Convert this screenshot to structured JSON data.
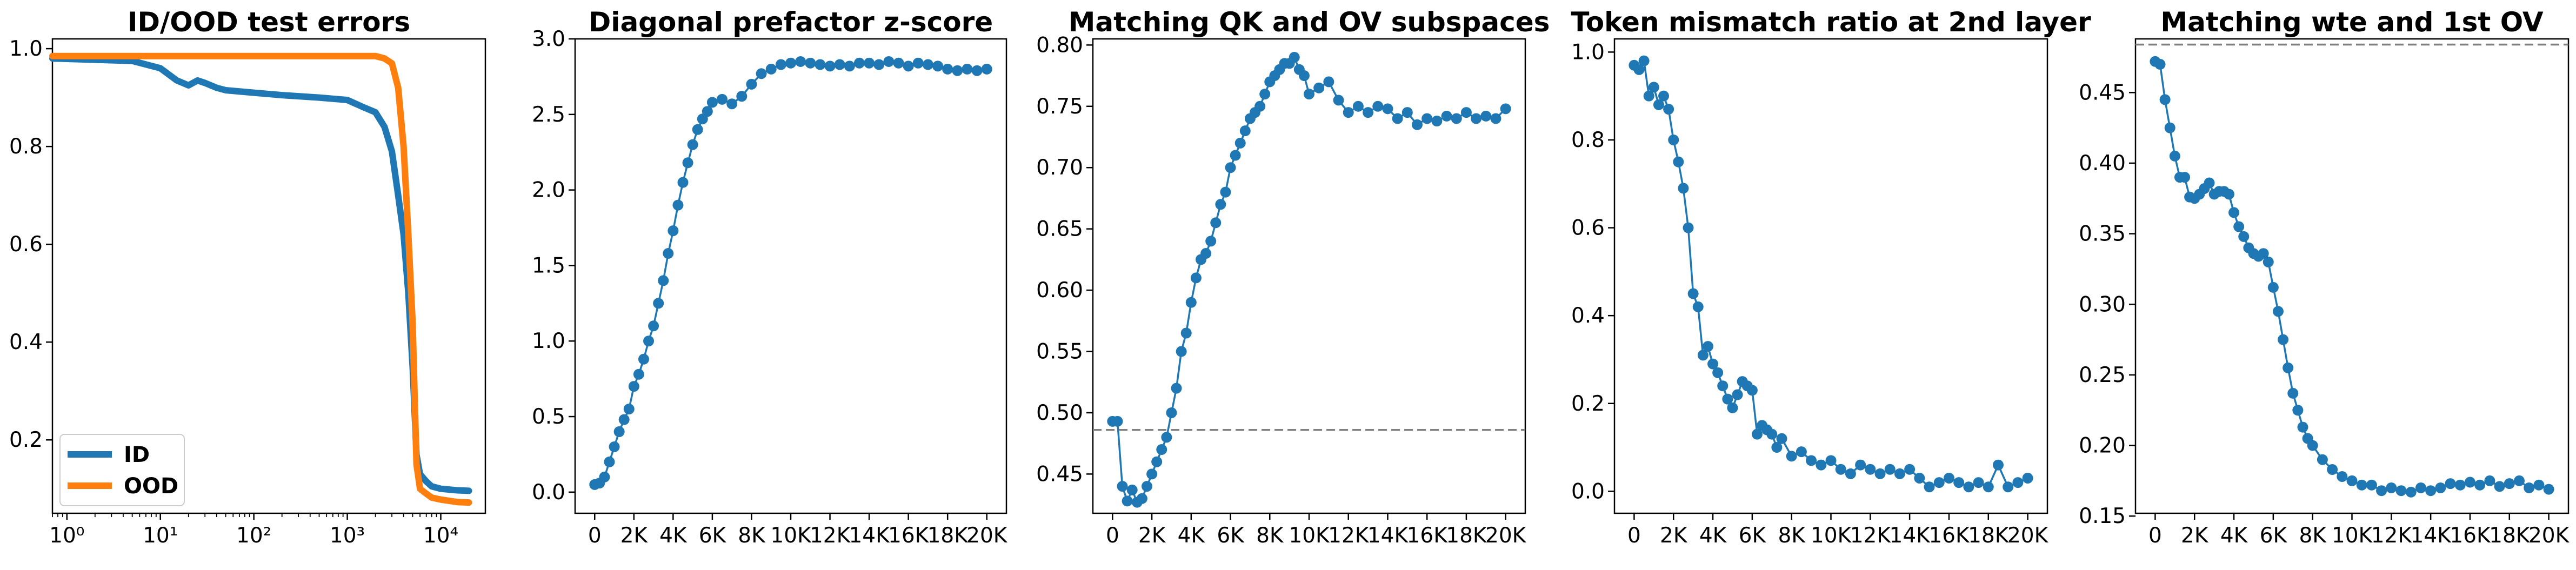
{
  "chart_data": [
    {
      "type": "line",
      "title": "ID/OOD test errors",
      "xscale": "log",
      "xlim": [
        0.7,
        30000
      ],
      "ylim": [
        0.05,
        1.02
      ],
      "yticks": [
        0.2,
        0.4,
        0.6,
        0.8,
        1.0
      ],
      "ytick_labels": [
        "0.2",
        "0.4",
        "0.6",
        "0.8",
        "1.0"
      ],
      "xticks": [
        1,
        10,
        100,
        1000,
        10000
      ],
      "xtick_labels": [
        "10⁰",
        "10¹",
        "10²",
        "10³",
        "10⁴"
      ],
      "legend_position": "lower-left",
      "series": [
        {
          "name": "ID",
          "color": "#1f77b4",
          "linewidth": 12,
          "x": [
            0.7,
            5,
            10,
            15,
            20,
            25,
            30,
            40,
            50,
            100,
            200,
            500,
            1000,
            1500,
            2000,
            2500,
            3000,
            3500,
            4000,
            4500,
            5000,
            5500,
            6000,
            7000,
            8000,
            10000,
            15000,
            20000
          ],
          "y": [
            0.98,
            0.975,
            0.96,
            0.935,
            0.925,
            0.935,
            0.93,
            0.92,
            0.915,
            0.91,
            0.905,
            0.9,
            0.895,
            0.88,
            0.87,
            0.84,
            0.79,
            0.7,
            0.62,
            0.5,
            0.35,
            0.17,
            0.13,
            0.115,
            0.105,
            0.1,
            0.097,
            0.096
          ]
        },
        {
          "name": "OOD",
          "color": "#ff7f0e",
          "linewidth": 12,
          "x": [
            0.7,
            10,
            100,
            1000,
            2000,
            2500,
            3000,
            3500,
            4000,
            4500,
            5000,
            5500,
            6000,
            7000,
            8000,
            10000,
            15000,
            20000
          ],
          "y": [
            0.985,
            0.985,
            0.985,
            0.985,
            0.985,
            0.98,
            0.97,
            0.92,
            0.8,
            0.62,
            0.44,
            0.15,
            0.1,
            0.09,
            0.082,
            0.078,
            0.073,
            0.072
          ]
        }
      ]
    },
    {
      "type": "line",
      "title": "Diagonal prefactor z-score",
      "xlim": [
        -1000,
        21000
      ],
      "ylim": [
        -0.14,
        3.0
      ],
      "yticks": [
        0.0,
        0.5,
        1.0,
        1.5,
        2.0,
        2.5,
        3.0
      ],
      "ytick_labels": [
        "0.0",
        "0.5",
        "1.0",
        "1.5",
        "2.0",
        "2.5",
        "3.0"
      ],
      "xticks": [
        0,
        2000,
        4000,
        6000,
        8000,
        10000,
        12000,
        14000,
        16000,
        18000,
        20000
      ],
      "xtick_labels": [
        "0",
        "2K",
        "4K",
        "6K",
        "8K",
        "10K",
        "12K",
        "14K",
        "16K",
        "18K",
        "20K"
      ],
      "markers": true,
      "series": [
        {
          "color": "#1f77b4",
          "x": [
            0,
            250,
            500,
            750,
            1000,
            1250,
            1500,
            1750,
            2000,
            2250,
            2500,
            2750,
            3000,
            3250,
            3500,
            3750,
            4000,
            4250,
            4500,
            4750,
            5000,
            5250,
            5500,
            5750,
            6000,
            6500,
            7000,
            7500,
            8000,
            8500,
            9000,
            9500,
            10000,
            10500,
            11000,
            11500,
            12000,
            12500,
            13000,
            13500,
            14000,
            14500,
            15000,
            15500,
            16000,
            16500,
            17000,
            17500,
            18000,
            18500,
            19000,
            19500,
            20000
          ],
          "y": [
            0.05,
            0.06,
            0.1,
            0.2,
            0.3,
            0.4,
            0.48,
            0.55,
            0.7,
            0.78,
            0.88,
            1.0,
            1.1,
            1.25,
            1.4,
            1.58,
            1.73,
            1.9,
            2.05,
            2.18,
            2.3,
            2.4,
            2.47,
            2.52,
            2.58,
            2.6,
            2.57,
            2.62,
            2.7,
            2.77,
            2.8,
            2.83,
            2.84,
            2.85,
            2.84,
            2.83,
            2.82,
            2.83,
            2.82,
            2.84,
            2.84,
            2.83,
            2.85,
            2.84,
            2.82,
            2.84,
            2.83,
            2.82,
            2.8,
            2.79,
            2.8,
            2.79,
            2.8
          ]
        }
      ]
    },
    {
      "type": "line",
      "title": "Matching QK and OV subspaces",
      "xlim": [
        -1000,
        21000
      ],
      "ylim": [
        0.418,
        0.805
      ],
      "yticks": [
        0.45,
        0.5,
        0.55,
        0.6,
        0.65,
        0.7,
        0.75,
        0.8
      ],
      "ytick_labels": [
        "0.45",
        "0.50",
        "0.55",
        "0.60",
        "0.65",
        "0.70",
        "0.75",
        "0.80"
      ],
      "xticks": [
        0,
        2000,
        4000,
        6000,
        8000,
        10000,
        12000,
        14000,
        16000,
        18000,
        20000
      ],
      "xtick_labels": [
        "0",
        "2K",
        "4K",
        "6K",
        "8K",
        "10K",
        "12K",
        "14K",
        "16K",
        "18K",
        "20K"
      ],
      "hline": {
        "y": 0.486,
        "style": "dashed",
        "color": "#808080"
      },
      "markers": true,
      "series": [
        {
          "color": "#1f77b4",
          "x": [
            0,
            250,
            500,
            750,
            1000,
            1250,
            1500,
            1750,
            2000,
            2250,
            2500,
            2750,
            3000,
            3250,
            3500,
            3750,
            4000,
            4250,
            4500,
            4750,
            5000,
            5250,
            5500,
            5750,
            6000,
            6250,
            6500,
            6750,
            7000,
            7250,
            7500,
            7750,
            8000,
            8250,
            8500,
            8750,
            9000,
            9250,
            9500,
            9750,
            10000,
            10500,
            11000,
            11500,
            12000,
            12500,
            13000,
            13500,
            14000,
            14500,
            15000,
            15500,
            16000,
            16500,
            17000,
            17500,
            18000,
            18500,
            19000,
            19500,
            20000
          ],
          "y": [
            0.493,
            0.493,
            0.44,
            0.428,
            0.437,
            0.427,
            0.43,
            0.44,
            0.45,
            0.46,
            0.47,
            0.48,
            0.5,
            0.52,
            0.55,
            0.565,
            0.59,
            0.61,
            0.625,
            0.63,
            0.64,
            0.655,
            0.67,
            0.68,
            0.7,
            0.71,
            0.72,
            0.73,
            0.74,
            0.745,
            0.75,
            0.76,
            0.77,
            0.775,
            0.78,
            0.785,
            0.785,
            0.79,
            0.78,
            0.775,
            0.76,
            0.765,
            0.77,
            0.755,
            0.745,
            0.75,
            0.745,
            0.75,
            0.748,
            0.74,
            0.745,
            0.735,
            0.74,
            0.738,
            0.742,
            0.74,
            0.745,
            0.74,
            0.742,
            0.74,
            0.748
          ]
        }
      ]
    },
    {
      "type": "line",
      "title": "Token mismatch ratio at 2nd layer",
      "xlim": [
        -1000,
        21000
      ],
      "ylim": [
        -0.05,
        1.03
      ],
      "yticks": [
        0.0,
        0.2,
        0.4,
        0.6,
        0.8,
        1.0
      ],
      "ytick_labels": [
        "0.0",
        "0.2",
        "0.4",
        "0.6",
        "0.8",
        "1.0"
      ],
      "xticks": [
        0,
        2000,
        4000,
        6000,
        8000,
        10000,
        12000,
        14000,
        16000,
        18000,
        20000
      ],
      "xtick_labels": [
        "0",
        "2K",
        "4K",
        "6K",
        "8K",
        "10K",
        "12K",
        "14K",
        "16K",
        "18K",
        "20K"
      ],
      "markers": true,
      "series": [
        {
          "color": "#1f77b4",
          "x": [
            0,
            250,
            500,
            750,
            1000,
            1250,
            1500,
            1750,
            2000,
            2250,
            2500,
            2750,
            3000,
            3250,
            3500,
            3750,
            4000,
            4250,
            4500,
            4750,
            5000,
            5250,
            5500,
            5750,
            6000,
            6250,
            6500,
            6750,
            7000,
            7250,
            7500,
            8000,
            8500,
            9000,
            9500,
            10000,
            10500,
            11000,
            11500,
            12000,
            12500,
            13000,
            13500,
            14000,
            14500,
            15000,
            15500,
            16000,
            16500,
            17000,
            17500,
            18000,
            18500,
            19000,
            19500,
            20000
          ],
          "y": [
            0.97,
            0.96,
            0.98,
            0.9,
            0.92,
            0.88,
            0.9,
            0.87,
            0.8,
            0.75,
            0.69,
            0.6,
            0.45,
            0.42,
            0.31,
            0.33,
            0.29,
            0.27,
            0.24,
            0.21,
            0.19,
            0.22,
            0.25,
            0.24,
            0.23,
            0.13,
            0.15,
            0.14,
            0.13,
            0.1,
            0.12,
            0.08,
            0.09,
            0.07,
            0.06,
            0.07,
            0.05,
            0.04,
            0.06,
            0.05,
            0.04,
            0.05,
            0.04,
            0.05,
            0.03,
            0.01,
            0.02,
            0.03,
            0.02,
            0.01,
            0.02,
            0.01,
            0.06,
            0.01,
            0.02,
            0.03
          ]
        }
      ]
    },
    {
      "type": "line",
      "title": "Matching wte and 1st OV",
      "xlim": [
        -1000,
        21000
      ],
      "ylim": [
        0.152,
        0.488
      ],
      "yticks": [
        0.15,
        0.2,
        0.25,
        0.3,
        0.35,
        0.4,
        0.45
      ],
      "ytick_labels": [
        "0.15",
        "0.20",
        "0.25",
        "0.30",
        "0.35",
        "0.40",
        "0.45"
      ],
      "xticks": [
        0,
        2000,
        4000,
        6000,
        8000,
        10000,
        12000,
        14000,
        16000,
        18000,
        20000
      ],
      "xtick_labels": [
        "0",
        "2K",
        "4K",
        "6K",
        "8K",
        "10K",
        "12K",
        "14K",
        "16K",
        "18K",
        "20K"
      ],
      "hline": {
        "y": 0.484,
        "style": "dashed",
        "color": "#808080"
      },
      "markers": true,
      "series": [
        {
          "color": "#1f77b4",
          "x": [
            0,
            250,
            500,
            750,
            1000,
            1250,
            1500,
            1750,
            2000,
            2250,
            2500,
            2750,
            3000,
            3250,
            3500,
            3750,
            4000,
            4250,
            4500,
            4750,
            5000,
            5250,
            5500,
            5750,
            6000,
            6250,
            6500,
            6750,
            7000,
            7250,
            7500,
            7750,
            8000,
            8500,
            9000,
            9500,
            10000,
            10500,
            11000,
            11500,
            12000,
            12500,
            13000,
            13500,
            14000,
            14500,
            15000,
            15500,
            16000,
            16500,
            17000,
            17500,
            18000,
            18500,
            19000,
            19500,
            20000
          ],
          "y": [
            0.472,
            0.47,
            0.445,
            0.425,
            0.405,
            0.39,
            0.39,
            0.376,
            0.375,
            0.378,
            0.382,
            0.386,
            0.378,
            0.38,
            0.38,
            0.378,
            0.365,
            0.355,
            0.348,
            0.34,
            0.336,
            0.334,
            0.336,
            0.33,
            0.312,
            0.295,
            0.275,
            0.255,
            0.237,
            0.225,
            0.213,
            0.205,
            0.2,
            0.19,
            0.183,
            0.178,
            0.175,
            0.172,
            0.172,
            0.168,
            0.17,
            0.168,
            0.167,
            0.17,
            0.168,
            0.17,
            0.173,
            0.172,
            0.174,
            0.172,
            0.175,
            0.171,
            0.173,
            0.175,
            0.17,
            0.172,
            0.169
          ]
        }
      ]
    }
  ]
}
